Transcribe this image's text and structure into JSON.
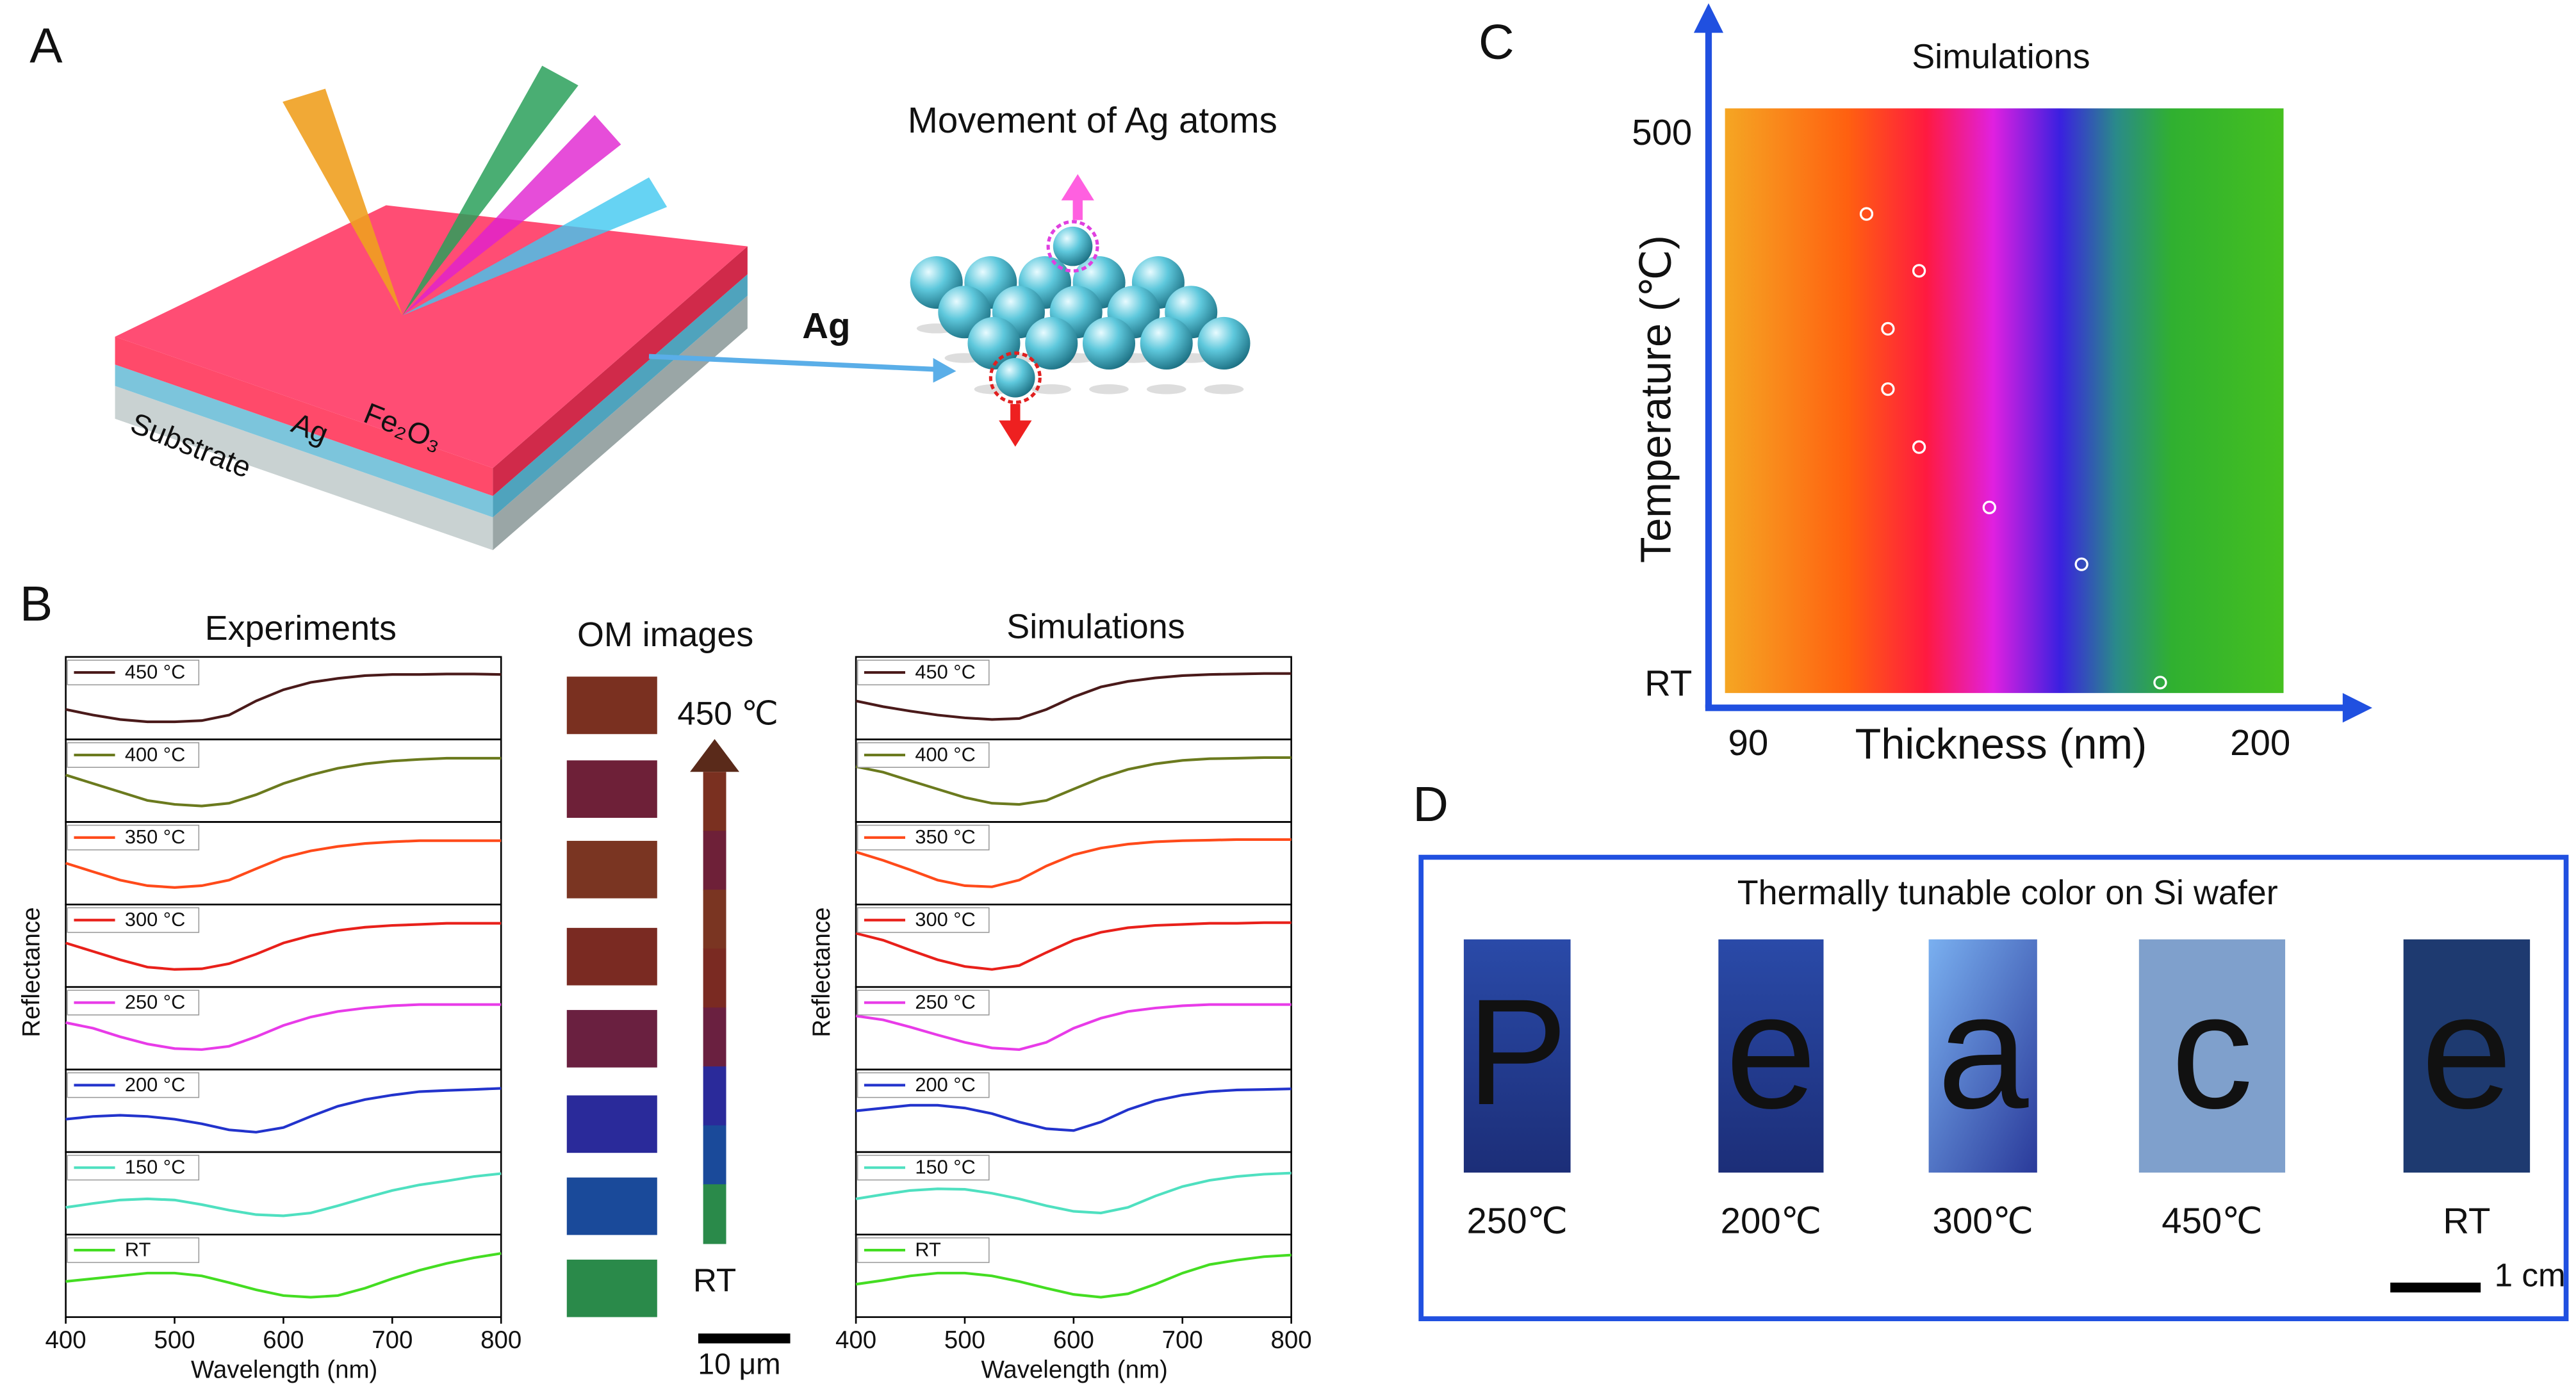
{
  "panel_a": {
    "label": "A",
    "layers": [
      "Substrate",
      "Ag",
      "Fe₂O₃"
    ],
    "arrow_label": "Ag",
    "atoms_title": "Movement of Ag atoms"
  },
  "panel_b": {
    "label": "B",
    "x": [
      400,
      425,
      450,
      475,
      500,
      525,
      550,
      575,
      600,
      625,
      650,
      675,
      700,
      725,
      750,
      775,
      800
    ],
    "xlim": [
      400,
      800
    ],
    "xticks": [
      400,
      500,
      600,
      700,
      800
    ],
    "x_label": "Wavelength (nm)",
    "y_label": "Reflectance",
    "experiments": {
      "title": "Experiments",
      "series": [
        {
          "name": "450 °C",
          "color": "#4a1a1a",
          "values": [
            0.3,
            0.2,
            0.12,
            0.08,
            0.08,
            0.1,
            0.2,
            0.45,
            0.65,
            0.78,
            0.85,
            0.9,
            0.92,
            0.92,
            0.93,
            0.93,
            0.92
          ]
        },
        {
          "name": "400 °C",
          "color": "#6b7a1e",
          "values": [
            0.6,
            0.45,
            0.3,
            0.15,
            0.08,
            0.05,
            0.1,
            0.25,
            0.45,
            0.6,
            0.72,
            0.8,
            0.85,
            0.88,
            0.9,
            0.9,
            0.9
          ]
        },
        {
          "name": "350 °C",
          "color": "#ff4a1a",
          "values": [
            0.5,
            0.35,
            0.2,
            0.1,
            0.07,
            0.1,
            0.2,
            0.4,
            0.6,
            0.72,
            0.8,
            0.85,
            0.88,
            0.9,
            0.9,
            0.9,
            0.9
          ]
        },
        {
          "name": "300 °C",
          "color": "#e8201a",
          "values": [
            0.55,
            0.4,
            0.25,
            0.12,
            0.08,
            0.09,
            0.18,
            0.35,
            0.55,
            0.68,
            0.77,
            0.83,
            0.86,
            0.88,
            0.9,
            0.9,
            0.9
          ]
        },
        {
          "name": "250 °C",
          "color": "#e83be8",
          "values": [
            0.6,
            0.5,
            0.35,
            0.22,
            0.14,
            0.12,
            0.18,
            0.35,
            0.55,
            0.7,
            0.8,
            0.86,
            0.9,
            0.92,
            0.92,
            0.92,
            0.92
          ]
        },
        {
          "name": "200 °C",
          "color": "#2233cc",
          "values": [
            0.35,
            0.4,
            0.42,
            0.4,
            0.35,
            0.27,
            0.16,
            0.12,
            0.2,
            0.4,
            0.58,
            0.7,
            0.78,
            0.84,
            0.86,
            0.88,
            0.9
          ]
        },
        {
          "name": "150 °C",
          "color": "#4fe0c0",
          "values": [
            0.25,
            0.32,
            0.38,
            0.4,
            0.38,
            0.3,
            0.2,
            0.12,
            0.1,
            0.15,
            0.28,
            0.42,
            0.55,
            0.65,
            0.72,
            0.8,
            0.85
          ]
        },
        {
          "name": "RT",
          "color": "#44dd22",
          "values": [
            0.4,
            0.45,
            0.5,
            0.55,
            0.55,
            0.5,
            0.38,
            0.25,
            0.15,
            0.12,
            0.15,
            0.28,
            0.45,
            0.6,
            0.72,
            0.82,
            0.9
          ]
        }
      ]
    },
    "simulations": {
      "title": "Simulations",
      "series": [
        {
          "name": "450 °C",
          "color": "#4a1a1a",
          "values": [
            0.45,
            0.35,
            0.27,
            0.2,
            0.15,
            0.12,
            0.14,
            0.3,
            0.52,
            0.7,
            0.8,
            0.86,
            0.9,
            0.92,
            0.93,
            0.94,
            0.94
          ]
        },
        {
          "name": "400 °C",
          "color": "#6b7a1e",
          "values": [
            0.75,
            0.65,
            0.5,
            0.35,
            0.2,
            0.1,
            0.08,
            0.15,
            0.35,
            0.55,
            0.7,
            0.8,
            0.86,
            0.89,
            0.9,
            0.91,
            0.91
          ]
        },
        {
          "name": "350 °C",
          "color": "#ff4a1a",
          "values": [
            0.7,
            0.55,
            0.38,
            0.2,
            0.1,
            0.08,
            0.2,
            0.45,
            0.65,
            0.77,
            0.84,
            0.88,
            0.9,
            0.91,
            0.92,
            0.92,
            0.92
          ]
        },
        {
          "name": "300 °C",
          "color": "#e8201a",
          "values": [
            0.72,
            0.6,
            0.42,
            0.25,
            0.13,
            0.08,
            0.15,
            0.38,
            0.6,
            0.74,
            0.82,
            0.86,
            0.88,
            0.9,
            0.9,
            0.91,
            0.91
          ]
        },
        {
          "name": "250 °C",
          "color": "#e83be8",
          "values": [
            0.72,
            0.65,
            0.52,
            0.38,
            0.25,
            0.15,
            0.12,
            0.25,
            0.5,
            0.68,
            0.8,
            0.86,
            0.9,
            0.92,
            0.92,
            0.92,
            0.92
          ]
        },
        {
          "name": "200 °C",
          "color": "#2233cc",
          "values": [
            0.5,
            0.55,
            0.6,
            0.6,
            0.55,
            0.45,
            0.3,
            0.18,
            0.15,
            0.3,
            0.52,
            0.68,
            0.78,
            0.84,
            0.87,
            0.88,
            0.89
          ]
        },
        {
          "name": "150 °C",
          "color": "#4fe0c0",
          "values": [
            0.4,
            0.48,
            0.55,
            0.58,
            0.57,
            0.5,
            0.4,
            0.28,
            0.18,
            0.15,
            0.25,
            0.45,
            0.62,
            0.73,
            0.8,
            0.84,
            0.86
          ]
        },
        {
          "name": "RT",
          "color": "#44dd22",
          "values": [
            0.35,
            0.42,
            0.5,
            0.55,
            0.55,
            0.5,
            0.4,
            0.28,
            0.17,
            0.12,
            0.18,
            0.35,
            0.55,
            0.7,
            0.78,
            0.84,
            0.87
          ]
        }
      ]
    },
    "om_images": {
      "title": "OM images",
      "top_label": "450 ℃",
      "bottom_label": "RT",
      "scale_bar": "10 μm",
      "colors": [
        "#7a3020",
        "#6e2038",
        "#7a3522",
        "#7a2a22",
        "#6a2040",
        "#2a2a9a",
        "#1a4a9a",
        "#2a8a4a"
      ]
    }
  },
  "panel_c": {
    "label": "C",
    "title": "Simulations",
    "x_label": "Thickness (nm)",
    "y_label": "Temperature (℃)",
    "xlim": [
      85,
      205
    ],
    "xticks": [
      90,
      200
    ],
    "ylim": [
      19,
      523
    ],
    "yticks": [
      {
        "value": 25,
        "label": "RT"
      },
      500
    ],
    "points": {
      "x": [
        115.4,
        126.7,
        120,
        120,
        126.7,
        141.8,
        161.6,
        178.5
      ],
      "y": [
        432,
        383,
        333,
        281,
        231,
        179,
        130,
        28
      ]
    }
  },
  "panel_d": {
    "label": "D",
    "title": "Thermally tunable color on Si wafer",
    "samples": [
      {
        "letter": "P",
        "label": "250℃"
      },
      {
        "letter": "e",
        "label": "200℃"
      },
      {
        "letter": "a",
        "label": "300℃"
      },
      {
        "letter": "c",
        "label": "450℃"
      },
      {
        "letter": "e",
        "label": "RT"
      }
    ],
    "scale_bar": "1 cm"
  }
}
